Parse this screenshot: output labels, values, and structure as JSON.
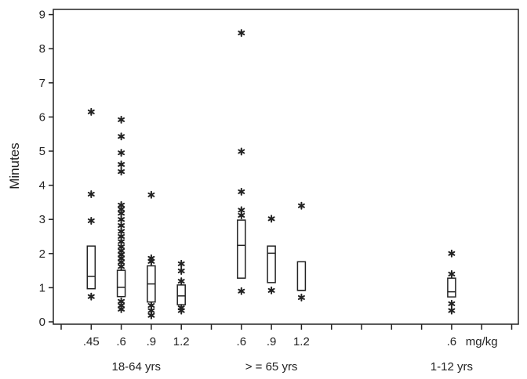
{
  "chart_data": {
    "type": "box",
    "title": "",
    "xlabel": "",
    "ylabel": "Minutes",
    "ylim": [
      0,
      9
    ],
    "yticks": [
      "0",
      "1",
      "2",
      "3",
      "4",
      "5",
      "6",
      "7",
      "8",
      "9"
    ],
    "x_unit_label": "mg/kg",
    "groups": [
      {
        "name": "18-64 yrs",
        "label_slot": 2.5
      },
      {
        "name": "> = 65 yrs",
        "label_slot": 7
      },
      {
        "name": "1-12 yrs",
        "label_slot": 13
      }
    ],
    "slot_count": 16,
    "boxes": [
      {
        "group": "18-64 yrs",
        "dose": ".45",
        "slot": 1,
        "q1": 0.97,
        "median": 1.33,
        "q3": 2.22,
        "outliers": [
          6.15,
          3.74,
          2.96,
          0.74
        ]
      },
      {
        "group": "18-64 yrs",
        "dose": ".6",
        "slot": 2,
        "q1": 0.74,
        "median": 1.01,
        "q3": 1.51,
        "outliers": [
          5.92,
          5.43,
          4.95,
          4.61,
          4.4,
          3.42,
          3.3,
          3.18,
          3.0,
          2.82,
          2.65,
          2.5,
          2.35,
          2.2,
          2.08,
          1.97,
          1.86,
          1.75,
          1.62,
          0.6,
          0.48,
          0.37
        ]
      },
      {
        "group": "18-64 yrs",
        "dose": ".9",
        "slot": 3,
        "q1": 0.58,
        "median": 1.11,
        "q3": 1.64,
        "outliers": [
          3.72,
          1.86,
          1.77,
          0.48,
          0.33,
          0.19
        ]
      },
      {
        "group": "18-64 yrs",
        "dose": "1.2",
        "slot": 4,
        "q1": 0.5,
        "median": 0.76,
        "q3": 1.08,
        "outliers": [
          1.7,
          1.49,
          1.19,
          0.41,
          0.33
        ]
      },
      {
        "group": "> = 65 yrs",
        "dose": ".6",
        "slot": 6,
        "q1": 1.28,
        "median": 2.24,
        "q3": 2.98,
        "outliers": [
          8.46,
          4.99,
          3.81,
          3.27,
          3.12,
          0.9
        ]
      },
      {
        "group": "> = 65 yrs",
        "dose": ".9",
        "slot": 7,
        "q1": 1.15,
        "median": 2.01,
        "q3": 2.22,
        "outliers": [
          3.02,
          0.92
        ]
      },
      {
        "group": "> = 65 yrs",
        "dose": "1.2",
        "slot": 8,
        "q1": 0.92,
        "median": 0.92,
        "q3": 1.76,
        "outliers": [
          3.4,
          0.71
        ]
      },
      {
        "group": "1-12 yrs",
        "dose": ".6",
        "slot": 13,
        "q1": 0.73,
        "median": 0.88,
        "q3": 1.28,
        "outliers": [
          2.0,
          1.4,
          0.53,
          0.33
        ]
      }
    ],
    "grid": false,
    "legend": "none"
  }
}
